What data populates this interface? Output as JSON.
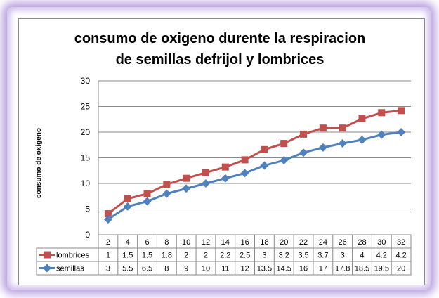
{
  "chart_data": {
    "type": "line",
    "title_lines": [
      "consumo de oxigeno durente la respiracion",
      "de semillas defrijol y lombrices"
    ],
    "ylabel": "consumo de oxigeno",
    "xlabel": "",
    "ylim": [
      0,
      30
    ],
    "yticks": [
      "0",
      "5",
      "10",
      "15",
      "20",
      "25",
      "30"
    ],
    "categories": [
      "2",
      "4",
      "6",
      "8",
      "10",
      "12",
      "14",
      "16",
      "18",
      "20",
      "22",
      "24",
      "26",
      "28",
      "30",
      "32"
    ],
    "grid": true,
    "legend": "data-table",
    "series": [
      {
        "name": "lombrices",
        "color": "#c0504d",
        "marker": "square",
        "values": [
          4.1,
          7.0,
          8.0,
          9.8,
          11.0,
          12.1,
          13.2,
          14.6,
          16.6,
          17.8,
          19.6,
          20.8,
          20.8,
          22.6,
          23.8,
          24.2
        ],
        "table_values": [
          "1",
          "1.5",
          "1.5",
          "1.8",
          "2",
          "2",
          "2.2",
          "2.5",
          "3",
          "3.2",
          "3.5",
          "3.7",
          "3",
          "4",
          "4.2",
          "4.2"
        ]
      },
      {
        "name": "semillas",
        "color": "#4f81bd",
        "marker": "diamond",
        "values": [
          3,
          5.5,
          6.5,
          8,
          9,
          10,
          11,
          12,
          13.5,
          14.5,
          16,
          17,
          17.8,
          18.5,
          19.5,
          20
        ],
        "table_values": [
          "3",
          "5.5",
          "6.5",
          "8",
          "9",
          "10",
          "11",
          "12",
          "13.5",
          "14.5",
          "16",
          "17",
          "17.8",
          "18.5",
          "19.5",
          "20"
        ]
      }
    ]
  }
}
